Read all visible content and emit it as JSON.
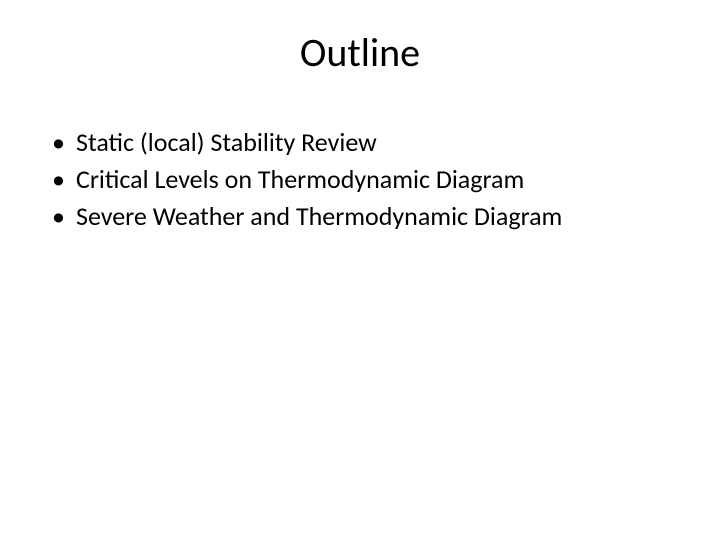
{
  "slide": {
    "title": "Outline",
    "title_fontsize": 40,
    "title_color": "#000000",
    "background_color": "#ffffff",
    "bullets": [
      "Static (local) Stability Review",
      "Critical Levels on Thermodynamic Diagram",
      "Severe Weather and Thermodynamic Diagram"
    ],
    "bullet_fontsize": 26,
    "bullet_color": "#000000",
    "bullet_marker": "•"
  }
}
